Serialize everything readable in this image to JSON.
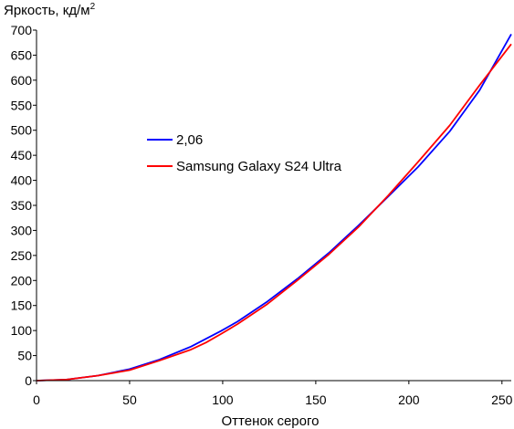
{
  "chart_data": {
    "type": "line",
    "ylabel": "Яркость, кд/м",
    "ylabel_superscript": "2",
    "xlabel": "Оттенок серого",
    "xlim": [
      0,
      255
    ],
    "ylim": [
      0,
      700
    ],
    "x_ticks": [
      0,
      50,
      100,
      150,
      200,
      250
    ],
    "y_ticks": [
      0,
      50,
      100,
      150,
      200,
      250,
      300,
      350,
      400,
      450,
      500,
      550,
      600,
      650,
      700
    ],
    "grid": false,
    "legend_position": "left-middle",
    "series": [
      {
        "name": "2,06",
        "color": "#0000ff",
        "x": [
          0,
          16,
          33,
          50,
          66,
          83,
          99,
          108,
          124,
          140,
          157,
          173,
          189,
          205,
          222,
          238,
          255
        ],
        "y": [
          0,
          2,
          10,
          23,
          42,
          68,
          99,
          118,
          158,
          203,
          255,
          310,
          368,
          427,
          498,
          580,
          692
        ]
      },
      {
        "name": "Samsung Galaxy S24 Ultra",
        "color": "#ff0000",
        "x": [
          0,
          16,
          33,
          50,
          66,
          83,
          91,
          99,
          108,
          124,
          140,
          157,
          173,
          189,
          205,
          222,
          238,
          255
        ],
        "y": [
          0,
          2,
          10,
          21,
          40,
          62,
          76,
          93,
          113,
          153,
          200,
          252,
          307,
          370,
          437,
          510,
          590,
          672
        ]
      }
    ]
  }
}
